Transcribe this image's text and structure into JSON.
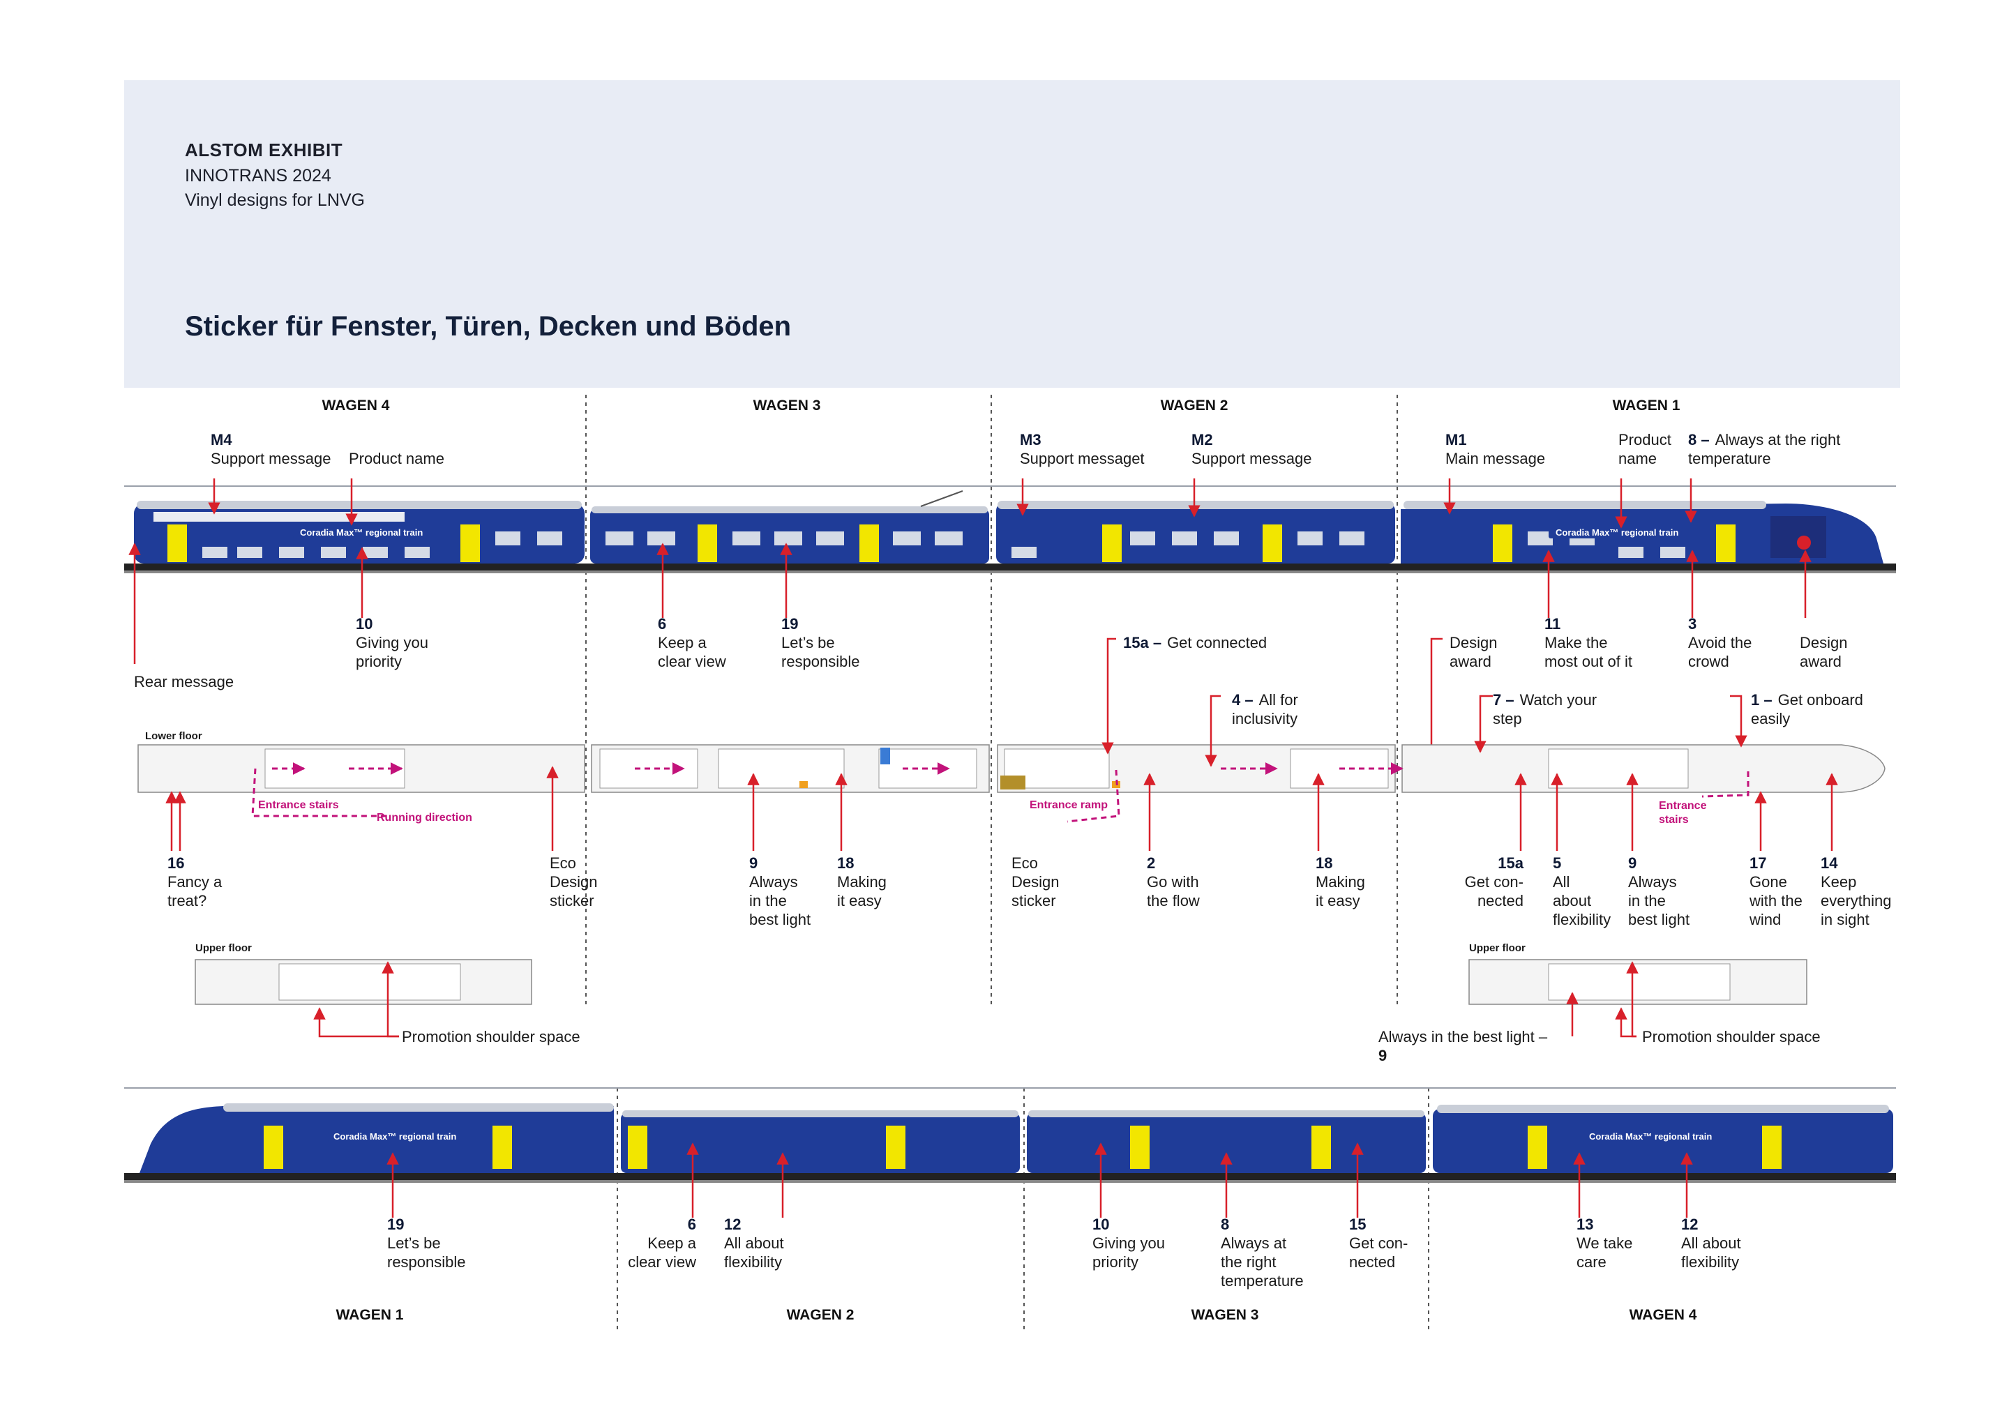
{
  "header": {
    "line1": "ALSTOM EXHIBIT",
    "line2": "INNOTRANS 2024",
    "line3": "Vinyl designs for LNVG",
    "title": "Sticker für Fenster, Türen, Decken und Böden"
  },
  "top_wagons": [
    "WAGEN 4",
    "WAGEN 3",
    "WAGEN 2",
    "WAGEN 1"
  ],
  "bottom_wagons": [
    "WAGEN 1",
    "WAGEN 2",
    "WAGEN 3",
    "WAGEN 4"
  ],
  "top_callouts": [
    {
      "num": "M4",
      "title": "Support message"
    },
    {
      "num": "",
      "title": "Product name"
    },
    {
      "num": "M3",
      "title": "Support messaget"
    },
    {
      "num": "M2",
      "title": "Support message"
    },
    {
      "num": "M1",
      "title": "Main message"
    },
    {
      "num": "",
      "title": "Product\nname"
    },
    {
      "num": "8 –",
      "title": "Always at the right\ntemperature"
    }
  ],
  "under_top_callouts": [
    {
      "num": "10",
      "title": "Giving you\npriority"
    },
    {
      "num": "6",
      "title": "Keep a\nclear view"
    },
    {
      "num": "19",
      "title": "Let’s be\nresponsible"
    },
    {
      "num": "",
      "title": "Design\naward"
    },
    {
      "num": "11",
      "title": "Make the\nmost out of it"
    },
    {
      "num": "3",
      "title": "Avoid the\ncrowd"
    },
    {
      "num": "",
      "title": "Design\naward"
    },
    {
      "num": "",
      "title": "Rear message"
    }
  ],
  "floor_callouts_top": [
    {
      "num": "15a –",
      "title": "Get connected"
    },
    {
      "num": "4 –",
      "title": "All for\ninclusivity"
    },
    {
      "num": "7 –",
      "title": "Watch your\nstep"
    },
    {
      "num": "1 –",
      "title": "Get onboard\neasily"
    }
  ],
  "floor_callouts_bottom": [
    {
      "num": "16",
      "title": "Fancy a\ntreat?"
    },
    {
      "num": "",
      "title": "Eco\nDesign\nsticker"
    },
    {
      "num": "9",
      "title": "Always\nin the\nbest light"
    },
    {
      "num": "18",
      "title": "Making\nit easy"
    },
    {
      "num": "",
      "title": "Eco\nDesign\nsticker"
    },
    {
      "num": "2",
      "title": "Go with\nthe flow"
    },
    {
      "num": "18",
      "title": "Making\nit easy"
    },
    {
      "num": "15a",
      "title": "Get con-\nnected"
    },
    {
      "num": "5",
      "title": "All\nabout\nflexibility"
    },
    {
      "num": "9",
      "title": "Always\nin the\nbest light"
    },
    {
      "num": "17",
      "title": "Gone\nwith the\nwind"
    },
    {
      "num": "14",
      "title": "Keep\neverything\nin sight"
    }
  ],
  "floor_labels": {
    "lower": "Lower floor",
    "upper_left": "Upper floor",
    "upper_right": "Upper floor",
    "entrance_stairs_left": "Entrance stairs",
    "running_direction": "Running direction",
    "entrance_ramp": "Entrance ramp",
    "entrance_stairs_right": "Entrance\nstairs"
  },
  "upper_floor_callouts": {
    "promo_left": "Promotion shoulder space",
    "best_light": "Always in the best light –",
    "best_light_num": "9",
    "promo_right": "Promotion shoulder space"
  },
  "bottom_callouts": [
    {
      "num": "19",
      "title": "Let’s be\nresponsible"
    },
    {
      "num": "6",
      "title": "Keep a\nclear view"
    },
    {
      "num": "12",
      "title": "All about\nflexibility"
    },
    {
      "num": "10",
      "title": "Giving you\npriority"
    },
    {
      "num": "8",
      "title": "Always at\nthe right\ntemperature"
    },
    {
      "num": "15",
      "title": "Get con-\nnected"
    },
    {
      "num": "13",
      "title": "We take\ncare"
    },
    {
      "num": "12",
      "title": "All about\nflexibility"
    }
  ],
  "train_text": {
    "product_badge": "Coradia Max™ regional train"
  },
  "colors": {
    "train_blue": "#1f3c98",
    "train_yellow": "#f2e600",
    "accent_red": "#d8202a",
    "flow_magenta": "#c2127a",
    "header_band": "#e8ecf5"
  }
}
